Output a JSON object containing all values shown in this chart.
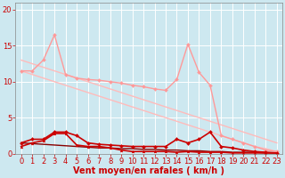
{
  "background_color": "#cde8f0",
  "grid_color": "#ffffff",
  "xlabel": "Vent moyen/en rafales ( km/h )",
  "xlabel_color": "#cc0000",
  "xlabel_fontsize": 7,
  "tick_color": "#cc0000",
  "tick_fontsize": 6,
  "xlim": [
    -0.5,
    23.5
  ],
  "ylim": [
    0,
    21
  ],
  "yticks": [
    0,
    5,
    10,
    15,
    20
  ],
  "xticks": [
    0,
    1,
    2,
    3,
    4,
    5,
    6,
    7,
    8,
    9,
    10,
    11,
    12,
    13,
    14,
    15,
    16,
    17,
    18,
    19,
    20,
    21,
    22,
    23
  ],
  "lines": [
    {
      "x": [
        0,
        1,
        2,
        3,
        4,
        5,
        6,
        7,
        8,
        9,
        10,
        11,
        12,
        13,
        14,
        15,
        16,
        17,
        18,
        19,
        20,
        21,
        22,
        23
      ],
      "y": [
        13.0,
        12.5,
        12.0,
        11.5,
        11.0,
        10.5,
        10.0,
        9.5,
        9.0,
        8.5,
        8.0,
        7.5,
        7.0,
        6.5,
        6.0,
        5.5,
        5.0,
        4.5,
        4.0,
        3.5,
        3.0,
        2.5,
        2.0,
        1.5
      ],
      "color": "#ffbbbb",
      "linewidth": 1.0,
      "marker": null,
      "markersize": 0
    },
    {
      "x": [
        0,
        1,
        2,
        3,
        4,
        5,
        6,
        7,
        8,
        9,
        10,
        11,
        12,
        13,
        14,
        15,
        16,
        17,
        18,
        19,
        20,
        21,
        22,
        23
      ],
      "y": [
        11.5,
        11.0,
        10.5,
        10.0,
        9.5,
        9.0,
        8.5,
        8.0,
        7.5,
        7.0,
        6.5,
        6.0,
        5.5,
        5.0,
        4.5,
        4.0,
        3.5,
        3.0,
        2.5,
        2.0,
        1.5,
        1.0,
        0.7,
        0.3
      ],
      "color": "#ffbbbb",
      "linewidth": 1.0,
      "marker": null,
      "markersize": 0
    },
    {
      "x": [
        0,
        1,
        2,
        3,
        4,
        5,
        6,
        7,
        8,
        9,
        10,
        11,
        12,
        13,
        14,
        15,
        16,
        17,
        18,
        19,
        20,
        21,
        22,
        23
      ],
      "y": [
        11.5,
        11.5,
        13.0,
        16.5,
        11.0,
        10.5,
        10.3,
        10.2,
        10.0,
        9.8,
        9.5,
        9.3,
        9.0,
        8.8,
        10.3,
        15.2,
        11.3,
        9.5,
        2.5,
        2.0,
        1.5,
        1.0,
        0.5,
        0.3
      ],
      "color": "#ff9999",
      "linewidth": 1.0,
      "marker": "D",
      "markersize": 2.0
    },
    {
      "x": [
        0,
        1,
        2,
        3,
        4,
        5,
        6,
        7,
        8,
        9,
        10,
        11,
        12,
        13,
        14,
        15,
        16,
        17,
        18,
        19,
        20,
        21,
        22,
        23
      ],
      "y": [
        1.5,
        1.4,
        1.3,
        1.2,
        1.1,
        1.0,
        0.9,
        0.8,
        0.8,
        0.7,
        0.7,
        0.6,
        0.6,
        0.5,
        0.5,
        0.4,
        0.4,
        0.3,
        0.3,
        0.2,
        0.2,
        0.2,
        0.1,
        0.1
      ],
      "color": "#880000",
      "linewidth": 1.0,
      "marker": null,
      "markersize": 0
    },
    {
      "x": [
        0,
        1,
        2,
        3,
        4,
        5,
        6,
        7,
        8,
        9,
        10,
        11,
        12,
        13,
        14,
        15,
        16,
        17,
        18,
        19,
        20,
        21,
        22,
        23
      ],
      "y": [
        1.5,
        2.0,
        2.0,
        3.0,
        3.0,
        2.5,
        1.5,
        1.3,
        1.2,
        1.1,
        1.0,
        1.0,
        1.0,
        1.0,
        2.0,
        1.5,
        2.0,
        3.0,
        1.0,
        0.8,
        0.5,
        0.3,
        0.2,
        0.1
      ],
      "color": "#cc0000",
      "linewidth": 1.2,
      "marker": "D",
      "markersize": 2.0
    },
    {
      "x": [
        0,
        1,
        2,
        3,
        4,
        5,
        6,
        7,
        8,
        9,
        10,
        11,
        12,
        13,
        14,
        15,
        16,
        17,
        18,
        19,
        20,
        21,
        22,
        23
      ],
      "y": [
        1.0,
        1.5,
        1.8,
        2.8,
        2.8,
        1.2,
        1.0,
        1.0,
        0.8,
        0.5,
        0.3,
        0.3,
        0.3,
        0.3,
        0.2,
        0.3,
        0.2,
        0.2,
        0.2,
        0.1,
        0.1,
        0.1,
        0.1,
        0.1
      ],
      "color": "#cc0000",
      "linewidth": 1.2,
      "marker": "^",
      "markersize": 2.0
    }
  ]
}
